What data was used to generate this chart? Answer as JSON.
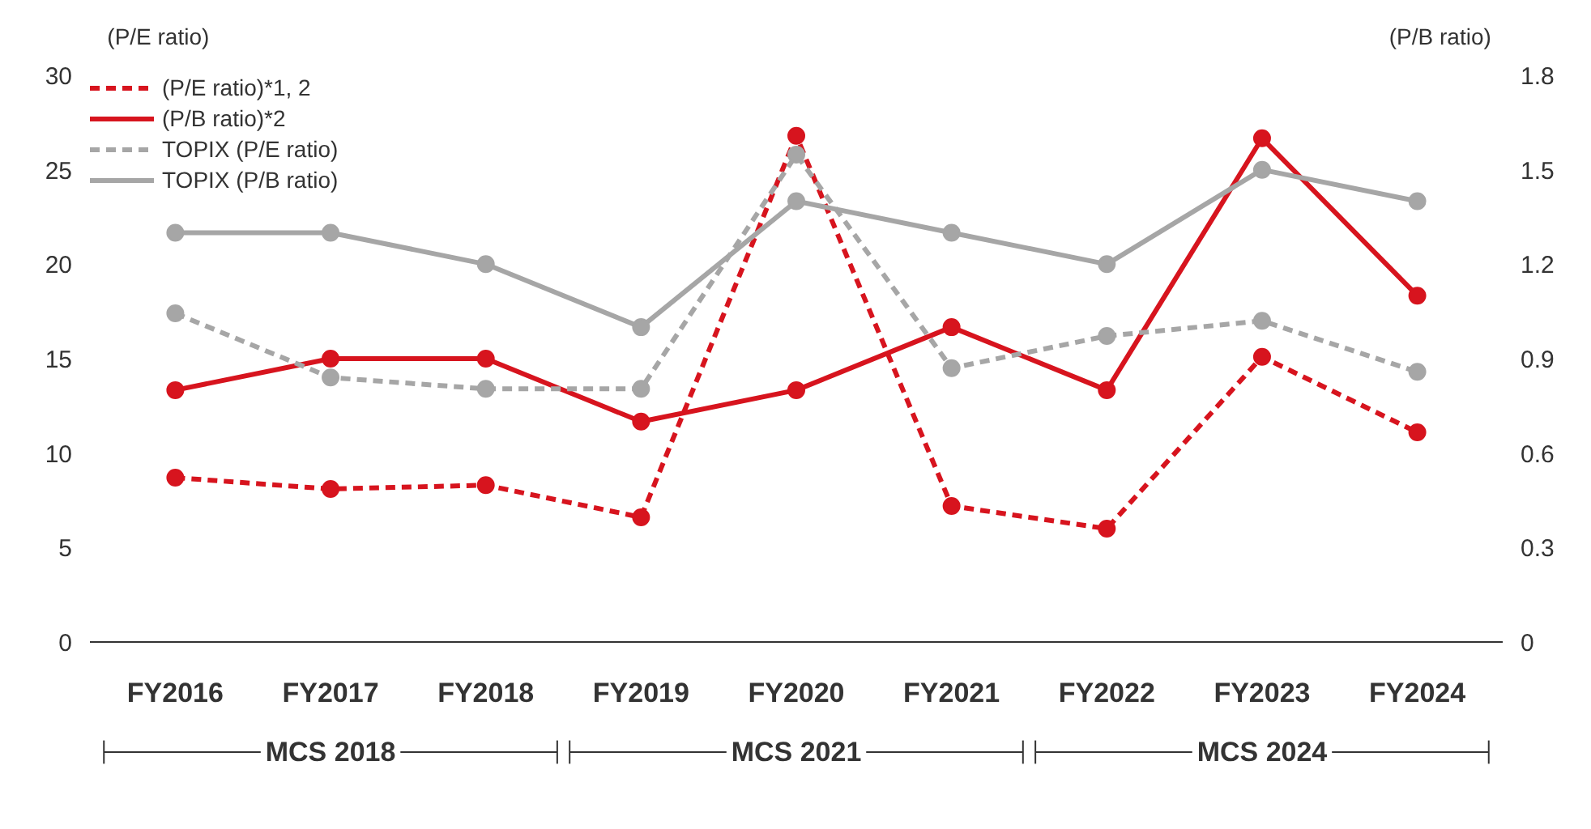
{
  "chart_data": {
    "type": "line",
    "ylabel": "(P/E ratio)",
    "y2label": "(P/B ratio)",
    "categories": [
      "FY2016",
      "FY2017",
      "FY2018",
      "FY2019",
      "FY2020",
      "FY2021",
      "FY2022",
      "FY2023",
      "FY2024"
    ],
    "series": [
      {
        "name": "(P/E ratio)*1, 2",
        "color": "#d7141e",
        "line_style": "dashed",
        "values": [
          8.7,
          8.1,
          8.3,
          6.6,
          26.8,
          7.2,
          6.0,
          15.1,
          11.1
        ]
      },
      {
        "name": "(P/B ratio)*2",
        "color": "#d7141e",
        "line_style": "solid",
        "axis": "y2",
        "values": [
          0.8,
          0.9,
          0.9,
          0.7,
          0.8,
          1.0,
          0.8,
          1.6,
          1.1
        ]
      },
      {
        "name": "TOPIX (P/E ratio)",
        "color": "#a6a6a6",
        "line_style": "dashed",
        "values": [
          17.4,
          14.0,
          13.4,
          13.4,
          25.8,
          14.5,
          16.2,
          17.0,
          14.3
        ]
      },
      {
        "name": "TOPIX (P/B ratio)",
        "color": "#a6a6a6",
        "line_style": "solid",
        "axis": "y2",
        "values": [
          1.3,
          1.3,
          1.2,
          1.0,
          1.4,
          1.3,
          1.2,
          1.5,
          1.4
        ]
      }
    ],
    "ylim": [
      0,
      30
    ],
    "yticks": [
      0,
      5,
      10,
      15,
      20,
      25,
      30
    ],
    "y2lim": [
      0,
      1.8
    ],
    "y2ticks": [
      0,
      0.3,
      0.6,
      0.9,
      1.2,
      1.5,
      1.8
    ],
    "marker": "circle",
    "grid": false,
    "legend": "top left",
    "annotations": [
      "MCS 2018",
      "MCS 2021",
      "MCS 2024"
    ]
  }
}
